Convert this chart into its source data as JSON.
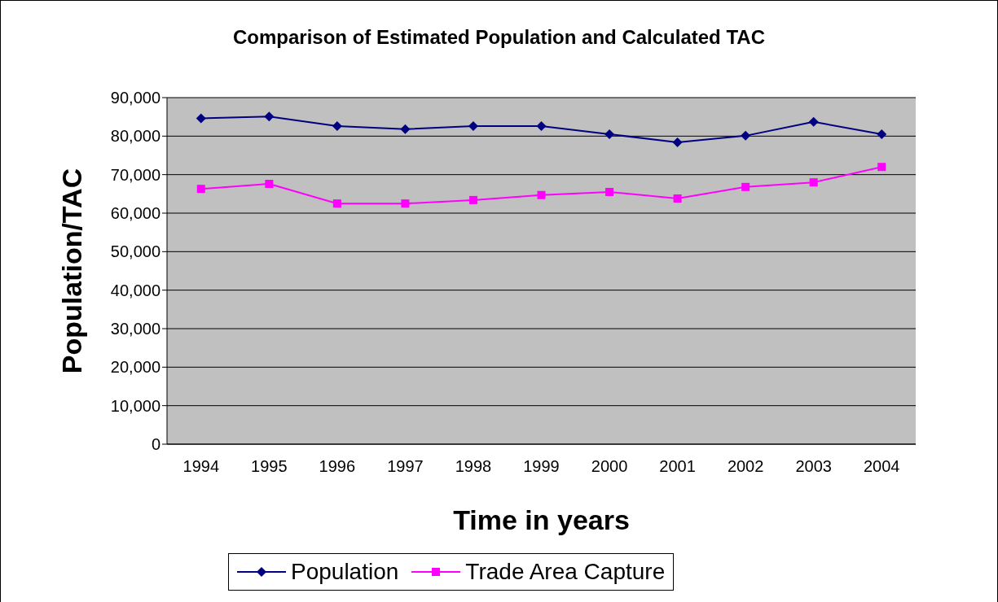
{
  "chart_data": {
    "type": "line",
    "title": "Comparison of Estimated Population and Calculated TAC",
    "xlabel": "Time in years",
    "ylabel": "Population/TAC",
    "categories": [
      "1994",
      "1995",
      "1996",
      "1997",
      "1998",
      "1999",
      "2000",
      "2001",
      "2002",
      "2003",
      "2004"
    ],
    "series": [
      {
        "name": "Population",
        "color": "#000080",
        "marker": "diamond",
        "values": [
          84600,
          85100,
          82600,
          81800,
          82600,
          82600,
          80500,
          78400,
          80100,
          83700,
          80500
        ]
      },
      {
        "name": "Trade Area Capture",
        "color": "#ff00ff",
        "marker": "square",
        "values": [
          66300,
          67600,
          62500,
          62500,
          63400,
          64700,
          65500,
          63800,
          66800,
          68000,
          72000
        ]
      }
    ],
    "ylim": [
      0,
      90000
    ],
    "yticks": [
      0,
      {
        "value": 10000,
        "label": "10,000"
      },
      {
        "value": 20000,
        "label": "20,000"
      },
      {
        "value": 30000,
        "label": "30,000"
      },
      {
        "value": 40000,
        "label": "40,000"
      },
      {
        "value": 50000,
        "label": "50,000"
      },
      {
        "value": 60000,
        "label": "60,000"
      },
      {
        "value": 70000,
        "label": "70,000"
      },
      {
        "value": 80000,
        "label": "80,000"
      },
      {
        "value": 90000,
        "label": "90,000"
      }
    ],
    "grid": "y",
    "legend": "bottom"
  }
}
